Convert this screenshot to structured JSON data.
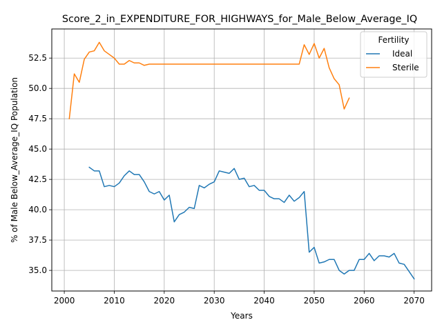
{
  "chart_data": {
    "type": "line",
    "title": "Score_2_in_EXPENDITURE_FOR_HIGHWAYS_for_Male_Below_Average_IQ",
    "xlabel": "Years",
    "ylabel": "% of Male Below_Average_IQ Population",
    "xlim": [
      1997.5,
      2073.5
    ],
    "ylim": [
      33.3,
      54.9
    ],
    "xticks": [
      2000,
      2010,
      2020,
      2030,
      2040,
      2050,
      2060,
      2070
    ],
    "yticks": [
      35.0,
      37.5,
      40.0,
      42.5,
      45.0,
      47.5,
      50.0,
      52.5
    ],
    "xtick_labels": [
      "2000",
      "2010",
      "2020",
      "2030",
      "2040",
      "2050",
      "2060",
      "2070"
    ],
    "ytick_labels": [
      "35.0",
      "37.5",
      "40.0",
      "42.5",
      "45.0",
      "47.5",
      "50.0",
      "52.5"
    ],
    "grid": true,
    "legend": {
      "title": "Fertility",
      "placement": "top-right"
    },
    "series": [
      {
        "name": "Ideal",
        "color": "#1f77b4",
        "x": [
          2005,
          2006,
          2007,
          2008,
          2009,
          2010,
          2011,
          2012,
          2013,
          2014,
          2015,
          2016,
          2017,
          2018,
          2019,
          2020,
          2021,
          2022,
          2023,
          2024,
          2025,
          2026,
          2027,
          2028,
          2029,
          2030,
          2031,
          2032,
          2033,
          2034,
          2035,
          2036,
          2037,
          2038,
          2039,
          2040,
          2041,
          2042,
          2043,
          2044,
          2045,
          2046,
          2047,
          2048,
          2049,
          2050,
          2051,
          2052,
          2053,
          2054,
          2055,
          2056,
          2057,
          2058,
          2059,
          2060,
          2061,
          2062,
          2063,
          2064,
          2065,
          2066,
          2067,
          2068,
          2069,
          2070
        ],
        "y": [
          43.5,
          43.2,
          43.2,
          41.9,
          42.0,
          41.9,
          42.2,
          42.8,
          43.2,
          42.9,
          42.9,
          42.3,
          41.5,
          41.3,
          41.5,
          40.8,
          41.2,
          39.0,
          39.6,
          39.8,
          40.2,
          40.1,
          42.0,
          41.8,
          42.1,
          42.3,
          43.2,
          43.1,
          43.0,
          43.4,
          42.5,
          42.6,
          41.9,
          42.0,
          41.6,
          41.6,
          41.1,
          40.9,
          40.9,
          40.6,
          41.2,
          40.7,
          41.0,
          41.5,
          36.5,
          36.9,
          35.6,
          35.7,
          35.9,
          35.9,
          35.0,
          34.7,
          35.0,
          35.0,
          35.9,
          35.9,
          36.4,
          35.8,
          36.2,
          36.2,
          36.1,
          36.4,
          35.6,
          35.5,
          34.9,
          34.3
        ]
      },
      {
        "name": "Sterile",
        "color": "#ff7f0e",
        "x": [
          2001,
          2002,
          2003,
          2004,
          2005,
          2006,
          2007,
          2008,
          2009,
          2010,
          2011,
          2012,
          2013,
          2014,
          2015,
          2016,
          2017,
          2018,
          2019,
          2020,
          2021,
          2022,
          2023,
          2024,
          2025,
          2026,
          2027,
          2028,
          2029,
          2030,
          2031,
          2032,
          2033,
          2034,
          2035,
          2036,
          2037,
          2038,
          2039,
          2040,
          2041,
          2042,
          2043,
          2044,
          2045,
          2046,
          2047,
          2048,
          2049,
          2050,
          2051,
          2052,
          2053,
          2054,
          2055,
          2056,
          2057
        ],
        "y": [
          47.5,
          51.2,
          50.5,
          52.4,
          53.0,
          53.1,
          53.8,
          53.1,
          52.8,
          52.5,
          52.0,
          52.0,
          52.3,
          52.1,
          52.1,
          51.9,
          52.0,
          52.0,
          52.0,
          52.0,
          52.0,
          52.0,
          52.0,
          52.0,
          52.0,
          52.0,
          52.0,
          52.0,
          52.0,
          52.0,
          52.0,
          52.0,
          52.0,
          52.0,
          52.0,
          52.0,
          52.0,
          52.0,
          52.0,
          52.0,
          52.0,
          52.0,
          52.0,
          52.0,
          52.0,
          52.0,
          52.0,
          53.6,
          52.8,
          53.7,
          52.5,
          53.3,
          51.7,
          50.8,
          50.3,
          48.3,
          49.2
        ]
      }
    ]
  }
}
